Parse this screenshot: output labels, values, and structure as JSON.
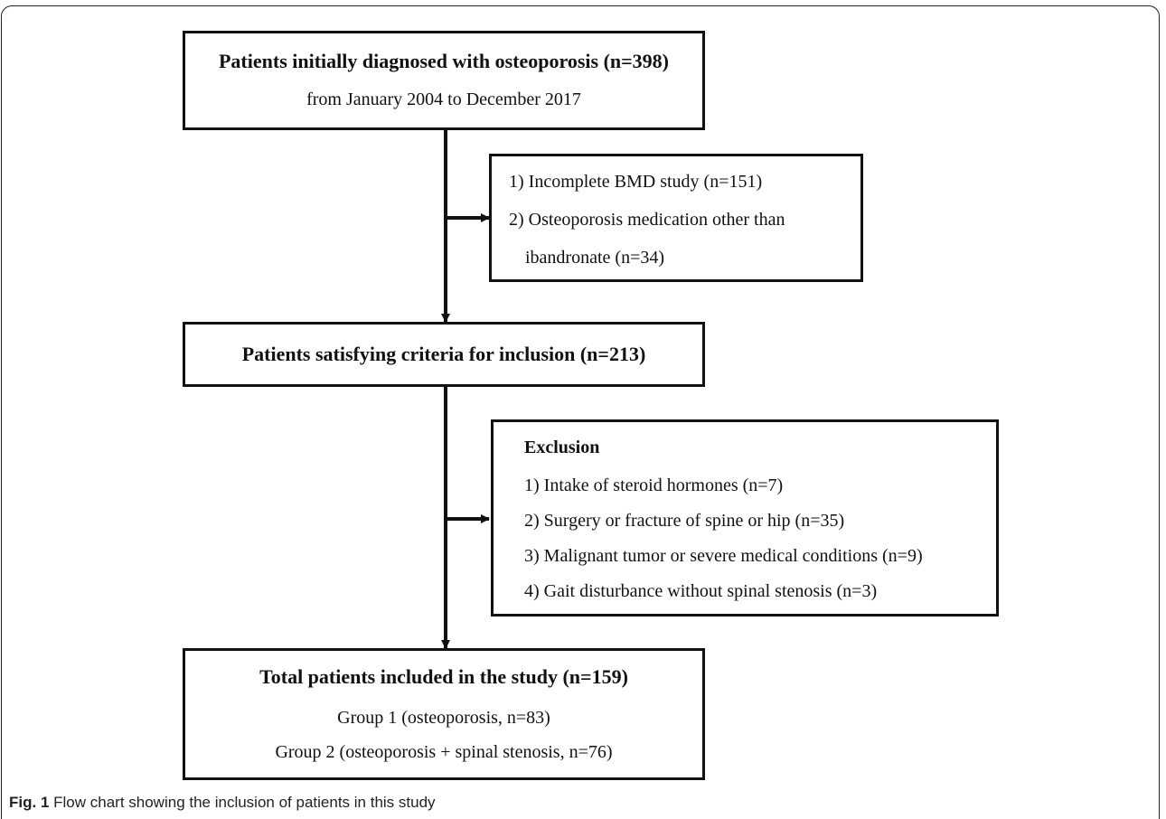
{
  "boxes": {
    "initial": {
      "title": "Patients initially diagnosed with osteoporosis (n=398)",
      "subtitle": "from January 2004 to December 2017"
    },
    "exclusion1": {
      "items": [
        "1) Incomplete BMD study (n=151)",
        "2) Osteoporosis medication other than",
        "ibandronate (n=34)"
      ]
    },
    "inclusion": {
      "title": "Patients satisfying criteria for inclusion (n=213)"
    },
    "exclusion2": {
      "heading": "Exclusion",
      "items": [
        "1) Intake of steroid hormones (n=7)",
        "2) Surgery or fracture of spine or hip (n=35)",
        "3) Malignant tumor or severe medical conditions (n=9)",
        "4) Gait disturbance without spinal stenosis (n=3)"
      ]
    },
    "final": {
      "title": "Total patients included in the study (n=159)",
      "groups": [
        "Group 1 (osteoporosis, n=83)",
        "Group 2 (osteoporosis + spinal stenosis, n=76)"
      ]
    }
  },
  "caption": {
    "label": "Fig. 1",
    "text": "Flow chart showing the inclusion of patients in this study"
  }
}
